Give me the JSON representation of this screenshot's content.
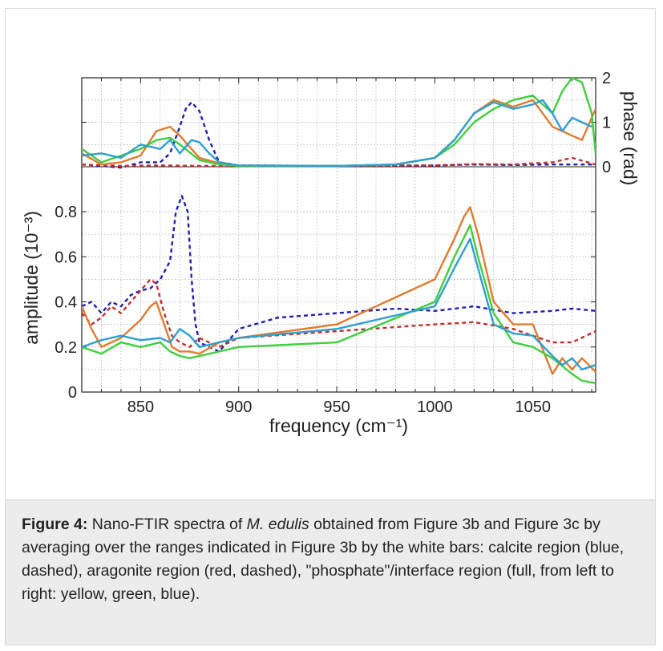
{
  "chart_data": [
    {
      "panel": "phase",
      "type": "line",
      "ylabel": "phase (rad)",
      "ytick_labels": [
        "0",
        "1",
        "2"
      ],
      "ylim": [
        0,
        2
      ],
      "xlim": [
        820,
        1082
      ],
      "grid": true,
      "series": [
        {
          "color": "#1f1fb0",
          "dash": true,
          "x": [
            820,
            830,
            840,
            850,
            860,
            865,
            870,
            873,
            876,
            880,
            885,
            890,
            900,
            950,
            1000,
            1020,
            1040,
            1060,
            1082
          ],
          "y": [
            0.05,
            0.02,
            -0.02,
            0.1,
            0.1,
            0.3,
            0.9,
            1.3,
            1.45,
            1.25,
            0.6,
            0.1,
            0.03,
            0.02,
            0.03,
            0.05,
            0.04,
            0.05,
            0.05
          ]
        },
        {
          "color": "#c03030",
          "dash": true,
          "x": [
            820,
            840,
            860,
            880,
            900,
            950,
            1000,
            1020,
            1040,
            1060,
            1070,
            1082
          ],
          "y": [
            0.05,
            0.02,
            0.03,
            0.02,
            0.02,
            0.02,
            0.03,
            0.06,
            0.05,
            0.1,
            0.2,
            0.05
          ]
        },
        {
          "color": "#e07b30",
          "dash": false,
          "x": [
            820,
            830,
            840,
            850,
            858,
            865,
            870,
            880,
            890,
            900,
            950,
            980,
            1000,
            1010,
            1020,
            1030,
            1040,
            1050,
            1060,
            1070,
            1075,
            1082
          ],
          "y": [
            0.3,
            0.05,
            0.1,
            0.25,
            0.8,
            0.9,
            0.7,
            0.2,
            0.08,
            0.02,
            0.02,
            0.05,
            0.2,
            0.6,
            1.2,
            1.5,
            1.35,
            1.5,
            0.9,
            0.7,
            0.6,
            1.3
          ]
        },
        {
          "color": "#3fcf3f",
          "dash": false,
          "x": [
            820,
            830,
            840,
            850,
            858,
            865,
            870,
            880,
            890,
            900,
            950,
            980,
            1000,
            1010,
            1020,
            1030,
            1040,
            1050,
            1060,
            1065,
            1070,
            1075,
            1080,
            1082
          ],
          "y": [
            0.4,
            0.1,
            0.25,
            0.4,
            0.6,
            0.65,
            0.5,
            0.15,
            0.05,
            0.02,
            0.02,
            0.05,
            0.2,
            0.5,
            1.0,
            1.3,
            1.5,
            1.6,
            1.2,
            1.7,
            2.0,
            1.9,
            1.2,
            0.3
          ]
        },
        {
          "color": "#2f9fd0",
          "dash": false,
          "x": [
            820,
            830,
            840,
            850,
            860,
            865,
            870,
            876,
            880,
            885,
            890,
            900,
            950,
            980,
            1000,
            1010,
            1020,
            1030,
            1040,
            1050,
            1055,
            1060,
            1065,
            1070,
            1080
          ],
          "y": [
            0.25,
            0.3,
            0.2,
            0.5,
            0.4,
            0.6,
            0.3,
            0.6,
            0.55,
            0.3,
            0.1,
            0.03,
            0.02,
            0.05,
            0.2,
            0.6,
            1.2,
            1.45,
            1.3,
            1.4,
            1.5,
            1.2,
            0.8,
            1.1,
            0.9
          ]
        }
      ]
    },
    {
      "panel": "amplitude",
      "type": "line",
      "xlabel": "frequency (cm⁻¹)",
      "ylabel": "amplitude (10⁻³)",
      "ytick_labels": [
        "0",
        "0.2",
        "0.4",
        "0.6",
        "0.8"
      ],
      "xtick_labels": [
        "850",
        "900",
        "950",
        "1000",
        "1050"
      ],
      "xlim": [
        820,
        1082
      ],
      "ylim": [
        0,
        0.9
      ],
      "grid": true,
      "series": [
        {
          "color": "#1f1fb0",
          "dash": true,
          "x": [
            820,
            825,
            830,
            835,
            840,
            845,
            850,
            855,
            860,
            865,
            868,
            871,
            874,
            876,
            878,
            880,
            885,
            890,
            900,
            920,
            950,
            980,
            1000,
            1020,
            1040,
            1060,
            1070,
            1082
          ],
          "y": [
            0.38,
            0.4,
            0.35,
            0.4,
            0.38,
            0.43,
            0.45,
            0.46,
            0.5,
            0.58,
            0.8,
            0.87,
            0.8,
            0.5,
            0.3,
            0.22,
            0.2,
            0.18,
            0.28,
            0.33,
            0.35,
            0.37,
            0.36,
            0.38,
            0.35,
            0.36,
            0.37,
            0.36
          ]
        },
        {
          "color": "#c03030",
          "dash": true,
          "x": [
            820,
            825,
            830,
            835,
            840,
            845,
            850,
            855,
            858,
            862,
            866,
            870,
            875,
            880,
            890,
            900,
            950,
            1000,
            1020,
            1040,
            1060,
            1070,
            1082
          ],
          "y": [
            0.35,
            0.3,
            0.33,
            0.38,
            0.35,
            0.4,
            0.45,
            0.5,
            0.48,
            0.35,
            0.25,
            0.22,
            0.2,
            0.24,
            0.2,
            0.24,
            0.27,
            0.3,
            0.31,
            0.28,
            0.22,
            0.22,
            0.27
          ]
        },
        {
          "color": "#e07b30",
          "dash": false,
          "x": [
            820,
            825,
            830,
            840,
            850,
            855,
            858,
            862,
            866,
            870,
            875,
            880,
            890,
            900,
            950,
            1000,
            1010,
            1015,
            1018,
            1022,
            1030,
            1040,
            1050,
            1060,
            1065,
            1070,
            1075,
            1082
          ],
          "y": [
            0.38,
            0.28,
            0.2,
            0.24,
            0.32,
            0.38,
            0.4,
            0.3,
            0.2,
            0.18,
            0.18,
            0.17,
            0.22,
            0.24,
            0.3,
            0.5,
            0.68,
            0.78,
            0.82,
            0.7,
            0.4,
            0.3,
            0.3,
            0.08,
            0.15,
            0.1,
            0.15,
            0.09
          ]
        },
        {
          "color": "#3fcf3f",
          "dash": false,
          "x": [
            820,
            830,
            840,
            850,
            860,
            865,
            870,
            875,
            880,
            890,
            900,
            950,
            1000,
            1010,
            1018,
            1022,
            1030,
            1040,
            1050,
            1060,
            1070,
            1075,
            1082
          ],
          "y": [
            0.2,
            0.17,
            0.22,
            0.2,
            0.22,
            0.18,
            0.16,
            0.15,
            0.16,
            0.18,
            0.2,
            0.22,
            0.4,
            0.6,
            0.74,
            0.6,
            0.35,
            0.22,
            0.2,
            0.15,
            0.08,
            0.05,
            0.04
          ]
        },
        {
          "color": "#2f9fd0",
          "dash": false,
          "x": [
            820,
            830,
            840,
            850,
            860,
            865,
            870,
            875,
            880,
            890,
            900,
            950,
            1000,
            1010,
            1018,
            1022,
            1030,
            1040,
            1050,
            1060,
            1065,
            1070,
            1075,
            1082
          ],
          "y": [
            0.2,
            0.23,
            0.25,
            0.23,
            0.24,
            0.22,
            0.28,
            0.25,
            0.2,
            0.22,
            0.24,
            0.28,
            0.38,
            0.55,
            0.68,
            0.55,
            0.3,
            0.26,
            0.25,
            0.16,
            0.12,
            0.15,
            0.1,
            0.12
          ]
        }
      ]
    }
  ],
  "caption": {
    "label": "Figure 4:",
    "text_1": " Nano-FTIR spectra of ",
    "species": "M. edulis",
    "text_2": " obtained from Figure 3b and Figure 3c by averaging over the ranges indicated in Figure 3b by the white bars: calcite region (blue, dashed), aragonite region (red, dashed), \"phosphate\"/interface region (full, from left to right: yellow, green, blue)."
  }
}
